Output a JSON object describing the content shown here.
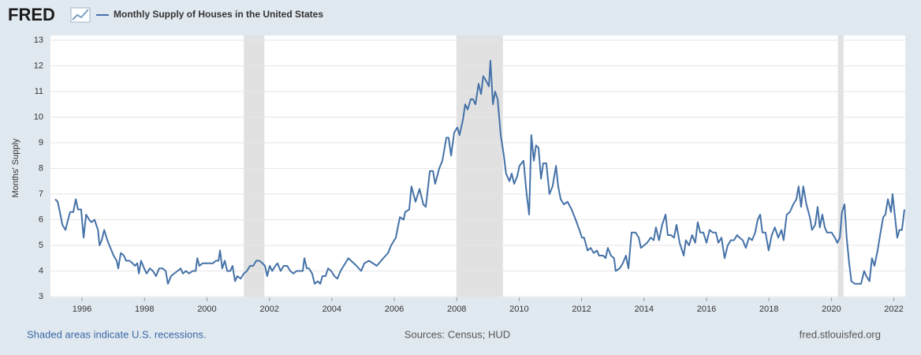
{
  "chart_data": {
    "type": "line",
    "logo": "FRED",
    "y_label": "Months' Supply",
    "footer_left": "Shaded areas indicate U.S. recessions.",
    "footer_center": "Sources: Census; HUD",
    "footer_right": "fred.stlouisfed.org",
    "xlim": [
      1995.14,
      2022.34
    ],
    "ylim": [
      3,
      13
    ],
    "xticks": [
      1996,
      1998,
      2000,
      2002,
      2004,
      2006,
      2008,
      2010,
      2012,
      2014,
      2016,
      2018,
      2020,
      2022
    ],
    "yticks": [
      3,
      4,
      5,
      6,
      7,
      8,
      9,
      10,
      11,
      12,
      13
    ],
    "grid": true,
    "recession_color": "#e1e1e1",
    "recessions": [
      [
        2001.18,
        2001.84
      ],
      [
        2007.99,
        2009.48
      ],
      [
        2020.21,
        2020.39
      ]
    ],
    "x": [
      1995.14,
      1995.22,
      1995.29,
      1995.37,
      1995.47,
      1995.55,
      1995.62,
      1995.72,
      1995.8,
      1995.87,
      1995.97,
      1996.05,
      1996.13,
      1996.23,
      1996.3,
      1996.4,
      1996.51,
      1996.56,
      1996.63,
      1996.71,
      1996.81,
      1996.91,
      1997.01,
      1997.11,
      1997.16,
      1997.24,
      1997.34,
      1997.41,
      1997.52,
      1997.62,
      1997.69,
      1997.77,
      1997.82,
      1997.89,
      1997.99,
      1998.07,
      1998.17,
      1998.27,
      1998.37,
      1998.47,
      1998.58,
      1998.68,
      1998.75,
      1998.85,
      1998.95,
      1999.06,
      1999.16,
      1999.23,
      1999.33,
      1999.43,
      1999.54,
      1999.64,
      1999.69,
      1999.76,
      1999.86,
      1999.96,
      2000.09,
      2000.19,
      2000.29,
      2000.37,
      2000.42,
      2000.49,
      2000.57,
      2000.65,
      2000.75,
      2000.82,
      2000.9,
      2000.97,
      2001.08,
      2001.18,
      2001.28,
      2001.38,
      2001.48,
      2001.58,
      2001.68,
      2001.78,
      2001.86,
      2001.93,
      2002.01,
      2002.09,
      2002.19,
      2002.26,
      2002.36,
      2002.46,
      2002.57,
      2002.67,
      2002.77,
      2002.87,
      2002.97,
      2003.07,
      2003.12,
      2003.2,
      2003.27,
      2003.37,
      2003.45,
      2003.55,
      2003.63,
      2003.7,
      2003.8,
      2003.88,
      2003.98,
      2004.08,
      2004.18,
      2004.28,
      2004.53,
      2004.79,
      2004.94,
      2005.04,
      2005.19,
      2005.44,
      2005.65,
      2005.8,
      2005.9,
      2006.05,
      2006.18,
      2006.3,
      2006.35,
      2006.48,
      2006.55,
      2006.68,
      2006.81,
      2006.93,
      2007.01,
      2007.14,
      2007.24,
      2007.31,
      2007.44,
      2007.54,
      2007.67,
      2007.74,
      2007.82,
      2007.92,
      2008.02,
      2008.09,
      2008.2,
      2008.27,
      2008.35,
      2008.45,
      2008.52,
      2008.6,
      2008.7,
      2008.78,
      2008.85,
      2008.95,
      2009.03,
      2009.08,
      2009.16,
      2009.23,
      2009.31,
      2009.41,
      2009.51,
      2009.58,
      2009.69,
      2009.76,
      2009.84,
      2009.94,
      2010.01,
      2010.14,
      2010.24,
      2010.32,
      2010.39,
      2010.47,
      2010.54,
      2010.62,
      2010.7,
      2010.77,
      2010.87,
      2010.97,
      2011.07,
      2011.18,
      2011.25,
      2011.33,
      2011.43,
      2011.55,
      2011.68,
      2011.81,
      2011.93,
      2012.01,
      2012.08,
      2012.19,
      2012.29,
      2012.39,
      2012.49,
      2012.56,
      2012.69,
      2012.77,
      2012.84,
      2012.94,
      2013.04,
      2013.09,
      2013.22,
      2013.32,
      2013.42,
      2013.5,
      2013.6,
      2013.73,
      2013.83,
      2013.9,
      2014.0,
      2014.1,
      2014.21,
      2014.31,
      2014.38,
      2014.48,
      2014.58,
      2014.69,
      2014.76,
      2014.86,
      2014.96,
      2015.04,
      2015.14,
      2015.27,
      2015.34,
      2015.44,
      2015.54,
      2015.64,
      2015.72,
      2015.8,
      2015.9,
      2016.0,
      2016.1,
      2016.2,
      2016.3,
      2016.38,
      2016.48,
      2016.58,
      2016.68,
      2016.78,
      2016.88,
      2016.98,
      2017.06,
      2017.16,
      2017.26,
      2017.36,
      2017.46,
      2017.56,
      2017.64,
      2017.72,
      2017.79,
      2017.89,
      2017.99,
      2018.09,
      2018.19,
      2018.3,
      2018.4,
      2018.47,
      2018.57,
      2018.67,
      2018.78,
      2018.88,
      2018.95,
      2019.03,
      2019.1,
      2019.2,
      2019.31,
      2019.38,
      2019.48,
      2019.56,
      2019.63,
      2019.71,
      2019.79,
      2019.86,
      2019.94,
      2020.01,
      2020.11,
      2020.19,
      2020.27,
      2020.34,
      2020.42,
      2020.49,
      2020.57,
      2020.64,
      2020.75,
      2020.85,
      2020.95,
      2021.05,
      2021.12,
      2021.22,
      2021.3,
      2021.38,
      2021.48,
      2021.56,
      2021.66,
      2021.73,
      2021.81,
      2021.91,
      2021.96,
      2022.03,
      2022.11,
      2022.18,
      2022.26,
      2022.34
    ],
    "series": [
      {
        "name": "Monthly Supply of Houses in the United States",
        "color": "#4572a7",
        "values": [
          6.8,
          6.7,
          6.3,
          5.8,
          5.6,
          6.0,
          6.3,
          6.3,
          6.8,
          6.4,
          6.4,
          5.3,
          6.2,
          6.0,
          5.9,
          6.0,
          5.6,
          5.0,
          5.2,
          5.6,
          5.2,
          4.9,
          4.6,
          4.4,
          4.1,
          4.7,
          4.6,
          4.4,
          4.4,
          4.3,
          4.2,
          4.3,
          3.9,
          4.4,
          4.1,
          3.9,
          4.1,
          4.0,
          3.8,
          4.1,
          4.1,
          4.0,
          3.5,
          3.8,
          3.9,
          4.0,
          4.1,
          3.9,
          4.0,
          3.9,
          4.0,
          4.0,
          4.5,
          4.2,
          4.3,
          4.3,
          4.3,
          4.3,
          4.4,
          4.4,
          4.8,
          4.1,
          4.4,
          4.0,
          4.0,
          4.2,
          3.6,
          3.8,
          3.7,
          3.9,
          4.0,
          4.2,
          4.2,
          4.4,
          4.4,
          4.3,
          4.2,
          3.8,
          4.2,
          4.0,
          4.2,
          4.3,
          4.0,
          4.2,
          4.2,
          4.0,
          3.9,
          4.0,
          4.0,
          4.0,
          4.5,
          4.1,
          4.1,
          3.9,
          3.5,
          3.6,
          3.5,
          3.8,
          3.8,
          4.1,
          4.0,
          3.8,
          3.7,
          4.0,
          4.5,
          4.2,
          4.0,
          4.3,
          4.4,
          4.2,
          4.5,
          4.7,
          5.0,
          5.3,
          6.1,
          6.0,
          6.3,
          6.4,
          7.3,
          6.7,
          7.2,
          6.6,
          6.5,
          7.9,
          7.9,
          7.4,
          8.0,
          8.3,
          9.2,
          9.2,
          8.5,
          9.4,
          9.6,
          9.3,
          9.9,
          10.5,
          10.3,
          10.7,
          10.7,
          10.5,
          11.3,
          10.9,
          11.6,
          11.4,
          11.2,
          12.2,
          10.5,
          11.0,
          10.7,
          9.3,
          8.5,
          7.8,
          7.5,
          7.8,
          7.4,
          7.7,
          8.1,
          8.3,
          7.0,
          6.2,
          9.3,
          8.3,
          8.9,
          8.8,
          7.6,
          8.2,
          8.2,
          7.0,
          7.3,
          8.1,
          7.3,
          6.8,
          6.6,
          6.7,
          6.4,
          6.0,
          5.6,
          5.3,
          5.3,
          4.8,
          4.9,
          4.7,
          4.8,
          4.6,
          4.6,
          4.5,
          4.9,
          4.6,
          4.5,
          4.0,
          4.1,
          4.3,
          4.6,
          4.1,
          5.5,
          5.5,
          5.3,
          4.9,
          5.0,
          5.1,
          5.3,
          5.2,
          5.7,
          5.2,
          5.8,
          6.2,
          5.4,
          5.4,
          5.3,
          5.8,
          5.1,
          4.6,
          5.2,
          5.0,
          5.4,
          5.1,
          5.9,
          5.5,
          5.5,
          5.1,
          5.6,
          5.5,
          5.5,
          5.1,
          5.3,
          4.5,
          5.0,
          5.2,
          5.2,
          5.4,
          5.3,
          5.2,
          4.9,
          5.3,
          5.2,
          5.5,
          6.0,
          6.2,
          5.5,
          5.5,
          4.8,
          5.4,
          5.7,
          5.3,
          5.6,
          5.2,
          6.2,
          6.3,
          6.6,
          6.8,
          7.3,
          6.5,
          7.3,
          6.6,
          6.1,
          5.6,
          5.8,
          6.5,
          5.7,
          6.2,
          5.7,
          5.5,
          5.5,
          5.5,
          5.3,
          5.1,
          5.3,
          6.3,
          6.6,
          5.3,
          4.3,
          3.6,
          3.5,
          3.5,
          3.5,
          4.0,
          3.8,
          3.6,
          4.5,
          4.2,
          4.8,
          5.4,
          6.1,
          6.2,
          6.8,
          6.3,
          7.0,
          6.2,
          5.3,
          5.6,
          5.6,
          6.4
        ]
      }
    ]
  }
}
